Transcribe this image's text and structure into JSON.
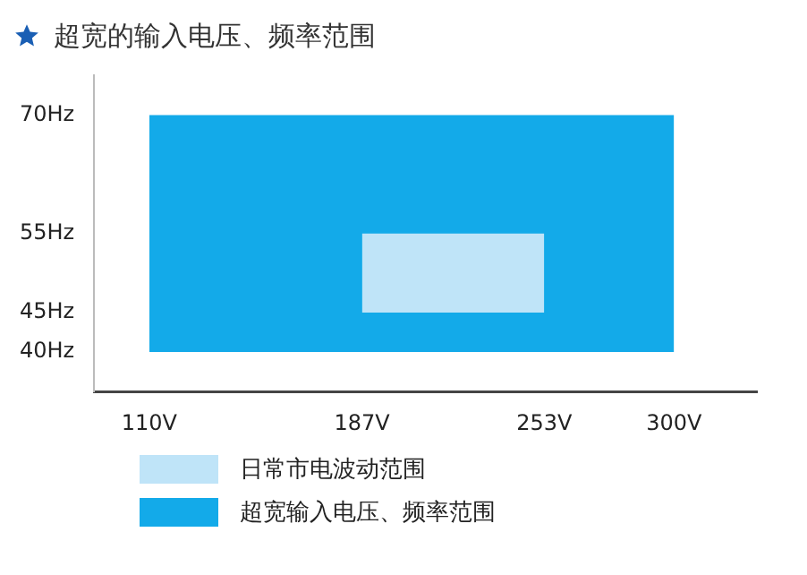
{
  "chart_data": {
    "type": "area",
    "title": "超宽的输入电压、频率范围",
    "series": [
      {
        "name": "日常市电波动范围",
        "color": "#bfe4f8",
        "x": [
          187,
          253
        ],
        "values": [
          null,
          null
        ],
        "lower": [
          45,
          45
        ],
        "upper": [
          55,
          55
        ]
      },
      {
        "name": "超宽输入电压、频率范围",
        "color": "#13aae9",
        "x": [
          110,
          300
        ],
        "values": [
          null,
          null
        ],
        "lower": [
          40,
          40
        ],
        "upper": [
          70,
          70
        ]
      }
    ],
    "xlim": [
      90,
      330
    ],
    "xticks": [
      {
        "value": 110,
        "label": "110V"
      },
      {
        "value": 187,
        "label": "187V"
      },
      {
        "value": 253,
        "label": "253V"
      },
      {
        "value": 300,
        "label": "300V"
      }
    ],
    "ylim": [
      35,
      75
    ],
    "yticks": [
      {
        "value": 40,
        "label": "40Hz"
      },
      {
        "value": 45,
        "label": "45Hz"
      },
      {
        "value": 55,
        "label": "55Hz"
      },
      {
        "value": 70,
        "label": "70Hz"
      }
    ],
    "grid": false,
    "legend": "bottom"
  }
}
